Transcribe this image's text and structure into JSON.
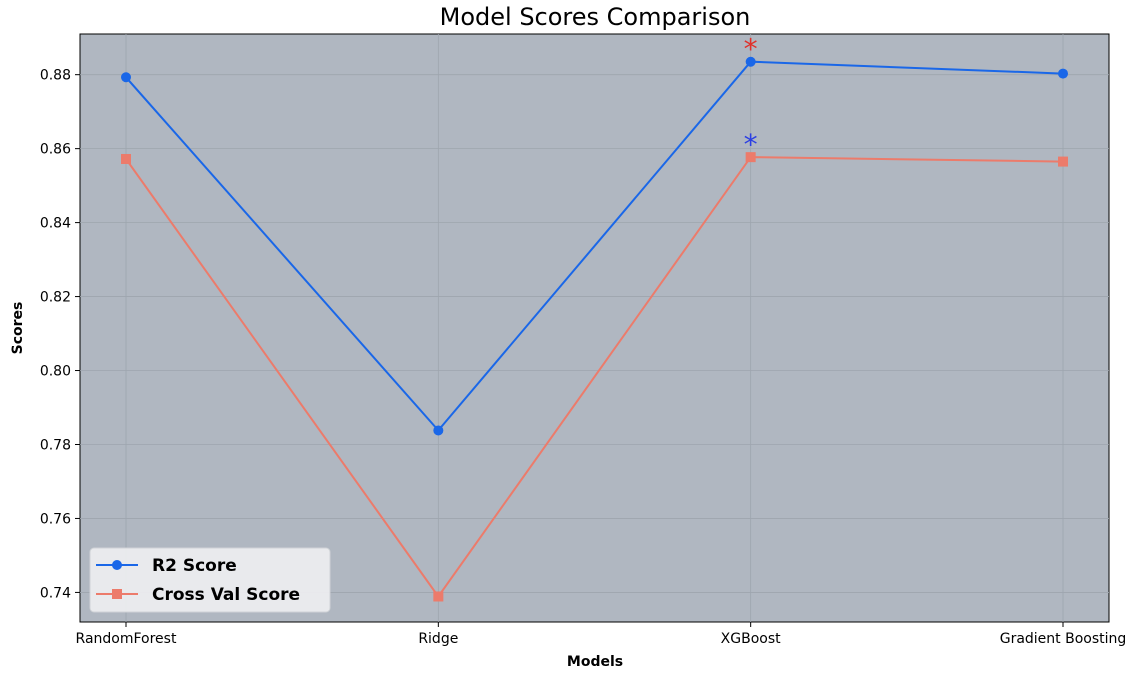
{
  "chart_data": {
    "type": "line",
    "title": "Model Scores Comparison",
    "xlabel": "Models",
    "ylabel": "Scores",
    "categories": [
      "RandomForest",
      "Ridge",
      "XGBoost",
      "Gradient Boosting"
    ],
    "ylim": [
      0.732,
      0.891
    ],
    "yticks": [
      "0.74",
      "0.76",
      "0.78",
      "0.80",
      "0.82",
      "0.84",
      "0.86",
      "0.88"
    ],
    "grid": true,
    "legend_position": "lower-left",
    "plot_background": "#b0b7c1",
    "series": [
      {
        "name": "R2 Score",
        "values": [
          0.8793,
          0.7838,
          0.8835,
          0.8803
        ],
        "color": "#1a67e8",
        "marker": "circle"
      },
      {
        "name": "Cross Val Score",
        "values": [
          0.8572,
          0.7389,
          0.8577,
          0.8565
        ],
        "color": "#ec7b6b",
        "marker": "square"
      }
    ],
    "annotations": [
      {
        "text": "*",
        "category": "XGBoost",
        "series": "R2 Score",
        "color": "#e0302a"
      },
      {
        "text": "*",
        "category": "XGBoost",
        "series": "Cross Val Score",
        "color": "#2b3fe3"
      }
    ]
  }
}
